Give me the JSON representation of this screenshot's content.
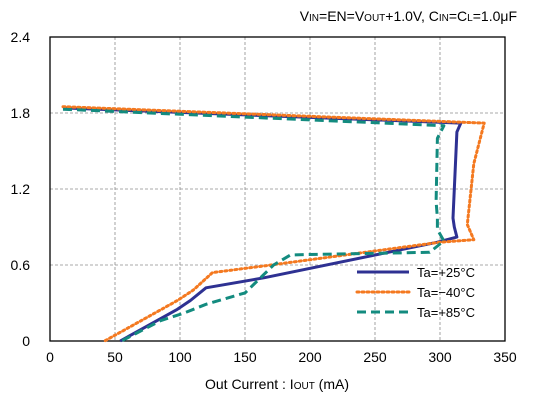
{
  "chart_data": {
    "type": "line",
    "title": {
      "parts": [
        {
          "text": "V",
          "small": false
        },
        {
          "text": "IN",
          "small": true
        },
        {
          "text": "=EN=V",
          "small": false
        },
        {
          "text": "OUT",
          "small": true
        },
        {
          "text": "+1.0V, C",
          "small": false
        },
        {
          "text": "IN",
          "small": true
        },
        {
          "text": "=C",
          "small": false
        },
        {
          "text": "L",
          "small": true
        },
        {
          "text": "=1.0μF",
          "small": false
        }
      ]
    },
    "xlabel": {
      "parts": [
        {
          "text": "Out Current : I",
          "small": false
        },
        {
          "text": "OUT",
          "small": true
        },
        {
          "text": " (mA)",
          "small": false
        }
      ]
    },
    "ylabel": "",
    "xlim": [
      0,
      350
    ],
    "ylim": [
      0,
      2.4
    ],
    "xticks": [
      "0",
      "50",
      "100",
      "150",
      "200",
      "250",
      "300",
      "350"
    ],
    "yticks": [
      "0",
      "0.6",
      "1.2",
      "1.8",
      "2.4"
    ],
    "grid": true,
    "legend_position": "bottom-right",
    "series": [
      {
        "name": "Ta=+25°C",
        "color": "#2e3192",
        "dash": "solid",
        "points": [
          [
            10,
            1.84
          ],
          [
            316,
            1.72
          ],
          [
            313,
            1.65
          ],
          [
            310,
            0.97
          ],
          [
            311,
            0.9
          ],
          [
            313,
            0.82
          ],
          [
            298,
            0.78
          ],
          [
            165,
            0.5
          ],
          [
            120,
            0.42
          ],
          [
            108,
            0.32
          ],
          [
            98,
            0.25
          ],
          [
            54,
            0
          ]
        ]
      },
      {
        "name": "Ta=−40°C",
        "color": "#f47920",
        "dash": "dot",
        "points": [
          [
            10,
            1.85
          ],
          [
            334,
            1.72
          ],
          [
            326,
            1.4
          ],
          [
            321,
            0.92
          ],
          [
            326,
            0.8
          ],
          [
            300,
            0.78
          ],
          [
            170,
            0.6
          ],
          [
            125,
            0.54
          ],
          [
            110,
            0.4
          ],
          [
            98,
            0.32
          ],
          [
            42,
            0
          ]
        ]
      },
      {
        "name": "Ta=+85°C",
        "color": "#138b7f",
        "dash": "dash",
        "points": [
          [
            10,
            1.83
          ],
          [
            303,
            1.7
          ],
          [
            298,
            1.6
          ],
          [
            297,
            1.1
          ],
          [
            298,
            0.97
          ],
          [
            298,
            0.88
          ],
          [
            303,
            0.79
          ],
          [
            292,
            0.7
          ],
          [
            185,
            0.68
          ],
          [
            172,
            0.6
          ],
          [
            150,
            0.38
          ],
          [
            120,
            0.29
          ],
          [
            103,
            0.22
          ],
          [
            85,
            0.16
          ],
          [
            55,
            0
          ]
        ]
      }
    ]
  }
}
